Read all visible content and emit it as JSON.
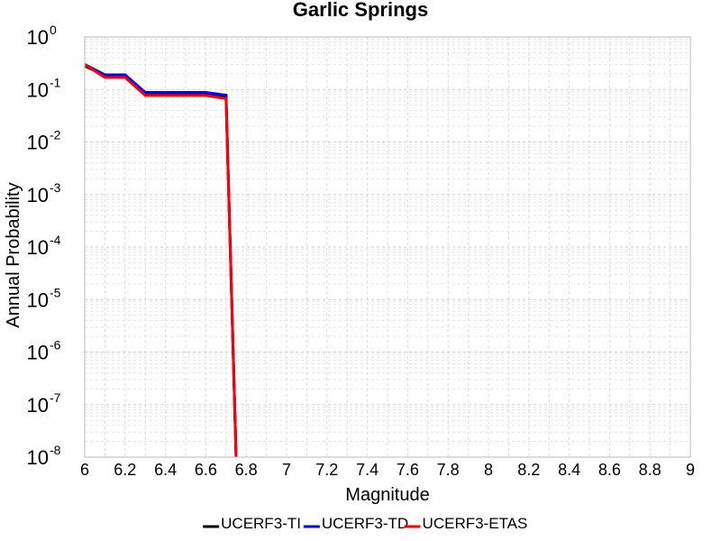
{
  "chart_data": {
    "type": "line",
    "title": "Garlic Springs",
    "xlabel": "Magnitude",
    "ylabel": "Annual Probability",
    "xlim": [
      6,
      9
    ],
    "ylim": [
      1e-08,
      1
    ],
    "y_scale": "log",
    "grid": true,
    "legend_placement": "bottom-center",
    "x_ticks": [
      "6",
      "6.2",
      "6.4",
      "6.6",
      "6.8",
      "7",
      "7.2",
      "7.4",
      "7.6",
      "7.8",
      "8",
      "8.2",
      "8.4",
      "8.6",
      "8.8",
      "9"
    ],
    "y_ticks": [
      {
        "base": "10",
        "exp": "0"
      },
      {
        "base": "10",
        "exp": "-1"
      },
      {
        "base": "10",
        "exp": "-2"
      },
      {
        "base": "10",
        "exp": "-3"
      },
      {
        "base": "10",
        "exp": "-4"
      },
      {
        "base": "10",
        "exp": "-5"
      },
      {
        "base": "10",
        "exp": "-6"
      },
      {
        "base": "10",
        "exp": "-7"
      },
      {
        "base": "10",
        "exp": "-8"
      }
    ],
    "series": [
      {
        "name": "UCERF3-TI",
        "color": "#000000",
        "x": [
          6.0,
          6.1,
          6.2,
          6.3,
          6.4,
          6.5,
          6.6,
          6.7,
          6.75
        ],
        "y": [
          0.28,
          0.185,
          0.185,
          0.085,
          0.085,
          0.085,
          0.085,
          0.075,
          1e-08
        ]
      },
      {
        "name": "UCERF3-TD",
        "color": "#0000ff",
        "x": [
          6.0,
          6.1,
          6.2,
          6.3,
          6.4,
          6.5,
          6.6,
          6.7,
          6.75
        ],
        "y": [
          0.3,
          0.19,
          0.19,
          0.088,
          0.088,
          0.088,
          0.088,
          0.078,
          1e-08
        ]
      },
      {
        "name": "UCERF3-ETAS",
        "color": "#ff0000",
        "x": [
          6.0,
          6.1,
          6.2,
          6.3,
          6.4,
          6.5,
          6.6,
          6.7,
          6.75
        ],
        "y": [
          0.3,
          0.17,
          0.17,
          0.077,
          0.077,
          0.077,
          0.077,
          0.067,
          1e-08
        ]
      }
    ]
  }
}
